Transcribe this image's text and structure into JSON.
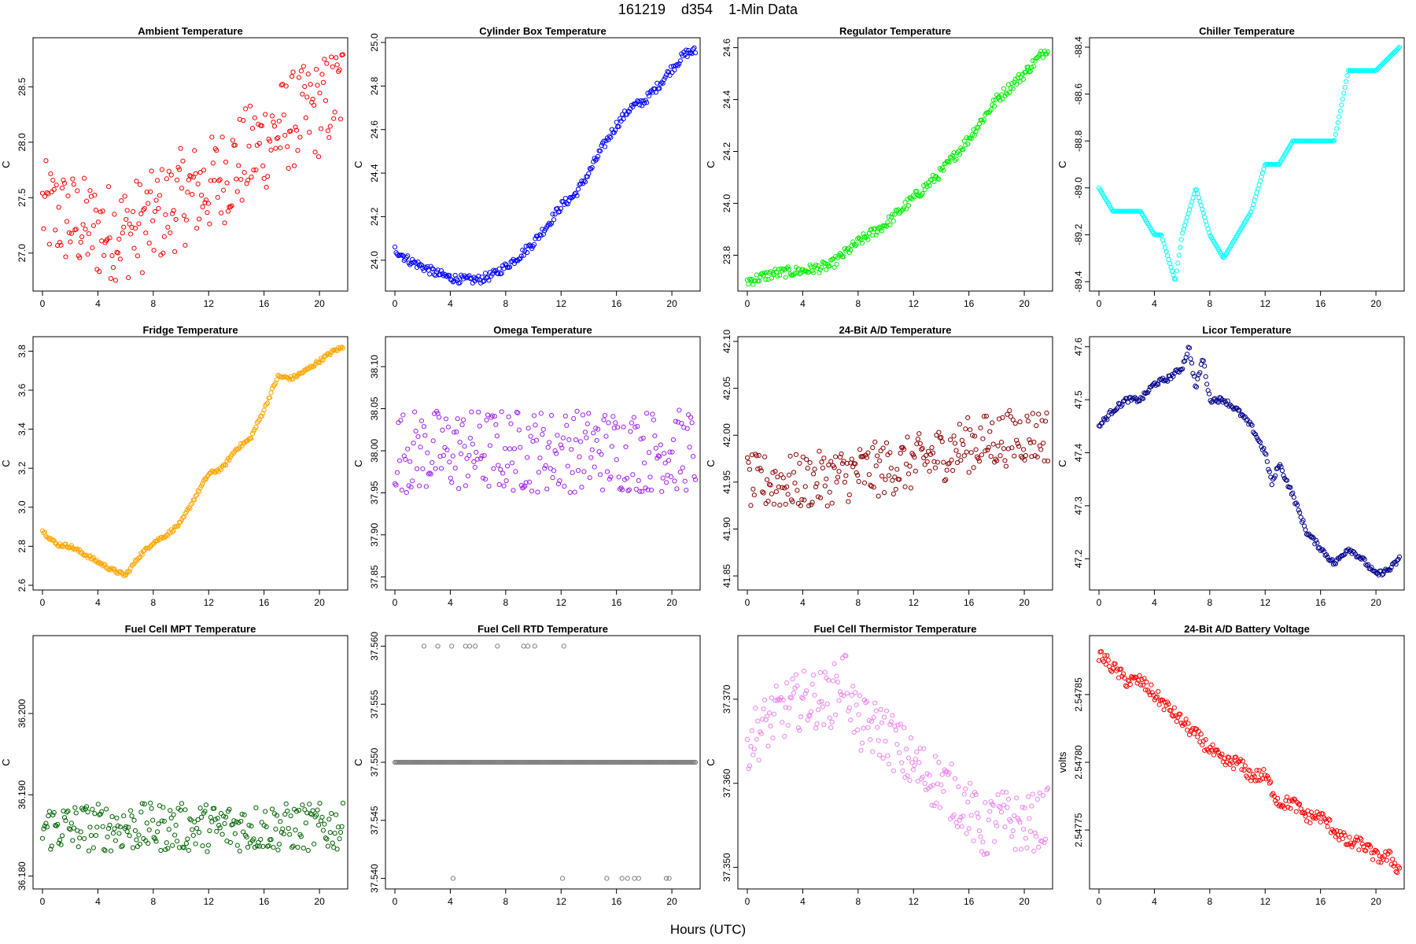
{
  "header": {
    "title": "161219    d354    1-Min Data",
    "xlabel": "Hours (UTC)"
  },
  "chart_data": [
    {
      "type": "scatter",
      "title": "Ambient Temperature",
      "ylabel": "C",
      "color": "#ff0000",
      "marker": "open-circle",
      "xlim": [
        0,
        21.7
      ],
      "xticks": [
        0,
        4,
        8,
        12,
        16,
        20
      ],
      "ylim": [
        26.7,
        28.9
      ],
      "yticks": [
        27.0,
        27.5,
        28.0,
        28.5
      ],
      "ytick_labels": [
        "27.0",
        "27.5",
        "28.0",
        "28.5"
      ],
      "x": [
        0,
        2,
        4,
        6,
        8,
        10,
        12,
        14,
        16,
        18,
        20,
        21.7
      ],
      "y": [
        27.4,
        27.3,
        27.2,
        27.2,
        27.3,
        27.5,
        27.6,
        27.8,
        28.0,
        28.2,
        28.3,
        28.5
      ],
      "spread": 0.45
    },
    {
      "type": "scatter",
      "title": "Cylinder Box Temperature",
      "ylabel": "C",
      "color": "#0000ff",
      "marker": "open-circle",
      "xlim": [
        0,
        21.7
      ],
      "xticks": [
        0,
        4,
        8,
        12,
        16,
        20
      ],
      "ylim": [
        23.88,
        25.0
      ],
      "yticks": [
        24.0,
        24.2,
        24.4,
        24.6,
        24.8,
        25.0
      ],
      "ytick_labels": [
        "24.0",
        "24.2",
        "24.4",
        "24.6",
        "24.8",
        "25.0"
      ],
      "x": [
        0,
        1,
        2,
        3,
        4,
        5,
        6,
        7,
        8,
        9,
        10,
        11,
        12,
        13,
        14,
        15,
        16,
        17,
        18,
        19,
        20,
        21,
        21.7
      ],
      "y": [
        24.05,
        24.0,
        23.97,
        23.94,
        23.92,
        23.91,
        23.91,
        23.93,
        23.97,
        24.02,
        24.08,
        24.16,
        24.25,
        24.3,
        24.4,
        24.52,
        24.62,
        24.7,
        24.73,
        24.8,
        24.88,
        24.95,
        24.96
      ],
      "spread": 0.02
    },
    {
      "type": "scatter",
      "title": "Regulator Temperature",
      "ylabel": "C",
      "color": "#00ee00",
      "marker": "open-circle",
      "xlim": [
        0,
        21.7
      ],
      "xticks": [
        0,
        4,
        8,
        12,
        16,
        20
      ],
      "ylim": [
        23.68,
        24.62
      ],
      "yticks": [
        23.8,
        24.0,
        24.2,
        24.4,
        24.6
      ],
      "ytick_labels": [
        "23.8",
        "24.0",
        "24.2",
        "24.4",
        "24.6"
      ],
      "x": [
        0,
        2,
        4,
        6,
        8,
        10,
        12,
        14,
        16,
        18,
        20,
        21.7
      ],
      "y": [
        23.7,
        23.73,
        23.74,
        23.76,
        23.85,
        23.92,
        24.02,
        24.12,
        24.25,
        24.4,
        24.5,
        24.6
      ],
      "spread": 0.02
    },
    {
      "type": "scatter",
      "title": "Chiller Temperature",
      "ylabel": "C",
      "color": "#00ffff",
      "marker": "open-circle",
      "xlim": [
        0,
        21.7
      ],
      "xticks": [
        0,
        4,
        8,
        12,
        16,
        20
      ],
      "ylim": [
        -89.42,
        -88.38
      ],
      "yticks": [
        -89.4,
        -89.2,
        -89.0,
        -88.8,
        -88.6,
        -88.4
      ],
      "ytick_labels": [
        "-89.4",
        "-89.2",
        "-89.0",
        "-88.8",
        "-88.6",
        "-88.4"
      ],
      "x": [
        0,
        1,
        2,
        3,
        4,
        4.5,
        5,
        5.5,
        6,
        6.5,
        7,
        8,
        9,
        10,
        11,
        12,
        13,
        14,
        15,
        16,
        17,
        18,
        19,
        20,
        21.7
      ],
      "y": [
        -89.0,
        -89.1,
        -89.1,
        -89.1,
        -89.2,
        -89.2,
        -89.3,
        -89.4,
        -89.2,
        -89.1,
        -89.0,
        -89.2,
        -89.3,
        -89.2,
        -89.1,
        -88.9,
        -88.9,
        -88.8,
        -88.8,
        -88.8,
        -88.8,
        -88.5,
        -88.5,
        -88.5,
        -88.4
      ],
      "spread": 0.0
    },
    {
      "type": "scatter",
      "title": "Fridge Temperature",
      "ylabel": "C",
      "color": "#ffa500",
      "marker": "open-circle",
      "xlim": [
        0,
        21.7
      ],
      "xticks": [
        0,
        4,
        8,
        12,
        16,
        20
      ],
      "ylim": [
        2.6,
        3.85
      ],
      "yticks": [
        2.6,
        2.8,
        3.0,
        3.2,
        3.4,
        3.6,
        3.8
      ],
      "ytick_labels": [
        "2.6",
        "2.8",
        "3.0",
        "3.2",
        "3.4",
        "3.6",
        "3.8"
      ],
      "x": [
        0,
        1,
        2,
        3,
        4,
        5,
        6,
        7,
        8,
        9,
        10,
        11,
        12,
        13,
        14,
        15,
        16,
        17,
        18,
        19,
        20,
        21,
        21.7
      ],
      "y": [
        2.88,
        2.81,
        2.8,
        2.76,
        2.72,
        2.68,
        2.65,
        2.75,
        2.82,
        2.86,
        2.92,
        3.05,
        3.17,
        3.2,
        3.3,
        3.35,
        3.5,
        3.67,
        3.66,
        3.7,
        3.75,
        3.8,
        3.82
      ],
      "spread": 0.01
    },
    {
      "type": "scatter",
      "title": "Omega Temperature",
      "ylabel": "C",
      "color": "#a020f0",
      "marker": "open-circle",
      "xlim": [
        0,
        21.7
      ],
      "xticks": [
        0,
        4,
        8,
        12,
        16,
        20
      ],
      "ylim": [
        37.84,
        38.13
      ],
      "yticks": [
        37.85,
        37.9,
        37.95,
        38.0,
        38.05,
        38.1
      ],
      "ytick_labels": [
        "37.85",
        "37.90",
        "37.95",
        "38.00",
        "38.05",
        "38.10"
      ],
      "x": [
        0,
        4,
        8,
        12,
        16,
        20,
        21.7
      ],
      "y": [
        38.0,
        38.0,
        38.0,
        38.0,
        38.0,
        38.0,
        38.0
      ],
      "spread": 0.05
    },
    {
      "type": "scatter",
      "title": "24-Bit A/D Temperature",
      "ylabel": "C",
      "color": "#8b0000",
      "marker": "open-circle",
      "xlim": [
        0,
        21.7
      ],
      "xticks": [
        0,
        4,
        8,
        12,
        16,
        20
      ],
      "ylim": [
        41.84,
        42.1
      ],
      "yticks": [
        41.85,
        41.9,
        41.95,
        42.0,
        42.05,
        42.1
      ],
      "ytick_labels": [
        "41.85",
        "41.90",
        "41.95",
        "42.00",
        "42.05",
        "42.10"
      ],
      "x": [
        0,
        4,
        8,
        12,
        16,
        20,
        21.7
      ],
      "y": [
        41.95,
        41.95,
        41.96,
        41.97,
        41.99,
        42.0,
        42.0
      ],
      "spread": 0.03
    },
    {
      "type": "scatter",
      "title": "Licor Temperature",
      "ylabel": "C",
      "color": "#00008b",
      "marker": "open-circle",
      "xlim": [
        0,
        21.7
      ],
      "xticks": [
        0,
        4,
        8,
        12,
        16,
        20
      ],
      "ylim": [
        47.15,
        47.61
      ],
      "yticks": [
        47.2,
        47.3,
        47.4,
        47.5,
        47.6
      ],
      "ytick_labels": [
        "47.2",
        "47.3",
        "47.4",
        "47.5",
        "47.6"
      ],
      "x": [
        0,
        1,
        2,
        3,
        4,
        5,
        6,
        6.5,
        7,
        7.5,
        8,
        9,
        10,
        11,
        12,
        12.5,
        13,
        14,
        15,
        16,
        17,
        18,
        19,
        20,
        21,
        21.7
      ],
      "y": [
        47.45,
        47.48,
        47.5,
        47.5,
        47.53,
        47.54,
        47.56,
        47.6,
        47.52,
        47.58,
        47.5,
        47.5,
        47.48,
        47.45,
        47.4,
        47.34,
        47.38,
        47.32,
        47.25,
        47.22,
        47.19,
        47.22,
        47.2,
        47.17,
        47.18,
        47.2
      ],
      "spread": 0.005
    },
    {
      "type": "scatter",
      "title": "Fuel Cell MPT Temperature",
      "ylabel": "C",
      "color": "#006400",
      "marker": "open-circle",
      "xlim": [
        0,
        21.7
      ],
      "xticks": [
        0,
        4,
        8,
        12,
        16,
        20
      ],
      "ylim": [
        36.179,
        36.209
      ],
      "yticks": [
        36.18,
        36.19,
        36.2
      ],
      "ytick_labels": [
        "36.180",
        "36.190",
        "36.200"
      ],
      "x": [
        0,
        4,
        8,
        12,
        16,
        20,
        21.7
      ],
      "y": [
        36.186,
        36.186,
        36.186,
        36.186,
        36.186,
        36.186,
        36.186
      ],
      "spread": 0.003
    },
    {
      "type": "scatter",
      "title": "Fuel Cell RTD Temperature",
      "ylabel": "C",
      "color": "#808080",
      "marker": "open-circle",
      "xlim": [
        0,
        21.7
      ],
      "xticks": [
        0,
        4,
        8,
        12,
        16,
        20
      ],
      "ylim": [
        37.5395,
        37.5605
      ],
      "yticks": [
        37.54,
        37.545,
        37.55,
        37.555,
        37.56
      ],
      "ytick_labels": [
        "37.540",
        "37.545",
        "37.550",
        "37.555",
        "37.560"
      ],
      "x": [
        0,
        21.7
      ],
      "y": [
        37.55,
        37.55
      ],
      "spread": 0.0,
      "outliers_high_x": [
        2.1,
        3.1,
        4.1,
        5.1,
        5.4,
        5.8,
        7.4,
        9.3,
        9.6,
        10.1,
        12.2
      ],
      "outliers_low_x": [
        4.2,
        12.1,
        15.3,
        16.4,
        16.8,
        17.3,
        17.6,
        19.6,
        19.8
      ]
    },
    {
      "type": "scatter",
      "title": "Fuel Cell Thermistor Temperature",
      "ylabel": "C",
      "color": "#ee82ee",
      "marker": "open-circle",
      "xlim": [
        0,
        21.7
      ],
      "xticks": [
        0,
        4,
        8,
        12,
        16,
        20
      ],
      "ylim": [
        37.348,
        37.377
      ],
      "yticks": [
        37.35,
        37.36,
        37.37
      ],
      "ytick_labels": [
        "37.350",
        "37.360",
        "37.370"
      ],
      "x": [
        0,
        2,
        4,
        6,
        7,
        8,
        10,
        12,
        14,
        16,
        17,
        18,
        20,
        21.7
      ],
      "y": [
        37.365,
        37.368,
        37.37,
        37.37,
        37.373,
        37.367,
        37.366,
        37.362,
        37.36,
        37.357,
        37.354,
        37.356,
        37.355,
        37.356
      ],
      "spread": 0.0035
    },
    {
      "type": "scatter",
      "title": "24-Bit A/D Battery Voltage",
      "ylabel": "volts",
      "color": "#ff0000",
      "marker": "open-circle",
      "xlim": [
        0,
        21.7
      ],
      "xticks": [
        0,
        4,
        8,
        12,
        16,
        20
      ],
      "ylim": [
        2.54771,
        2.54789
      ],
      "yticks": [
        2.54775,
        2.5478,
        2.54785
      ],
      "ytick_labels": [
        "2.54775",
        "2.54780",
        "2.54785"
      ],
      "x": [
        0,
        1,
        2,
        3,
        4,
        5,
        6,
        7,
        8,
        9,
        10,
        11,
        12,
        13,
        14,
        15,
        16,
        17,
        18,
        19,
        20,
        21,
        21.7
      ],
      "y": [
        2.54788,
        2.54787,
        2.54786,
        2.54786,
        2.54785,
        2.54784,
        2.54783,
        2.54782,
        2.54781,
        2.5478,
        2.5478,
        2.54779,
        2.54779,
        2.54777,
        2.54777,
        2.54776,
        2.54776,
        2.54775,
        2.54774,
        2.54774,
        2.54773,
        2.54773,
        2.54772
      ],
      "spread": 5e-06
    }
  ]
}
